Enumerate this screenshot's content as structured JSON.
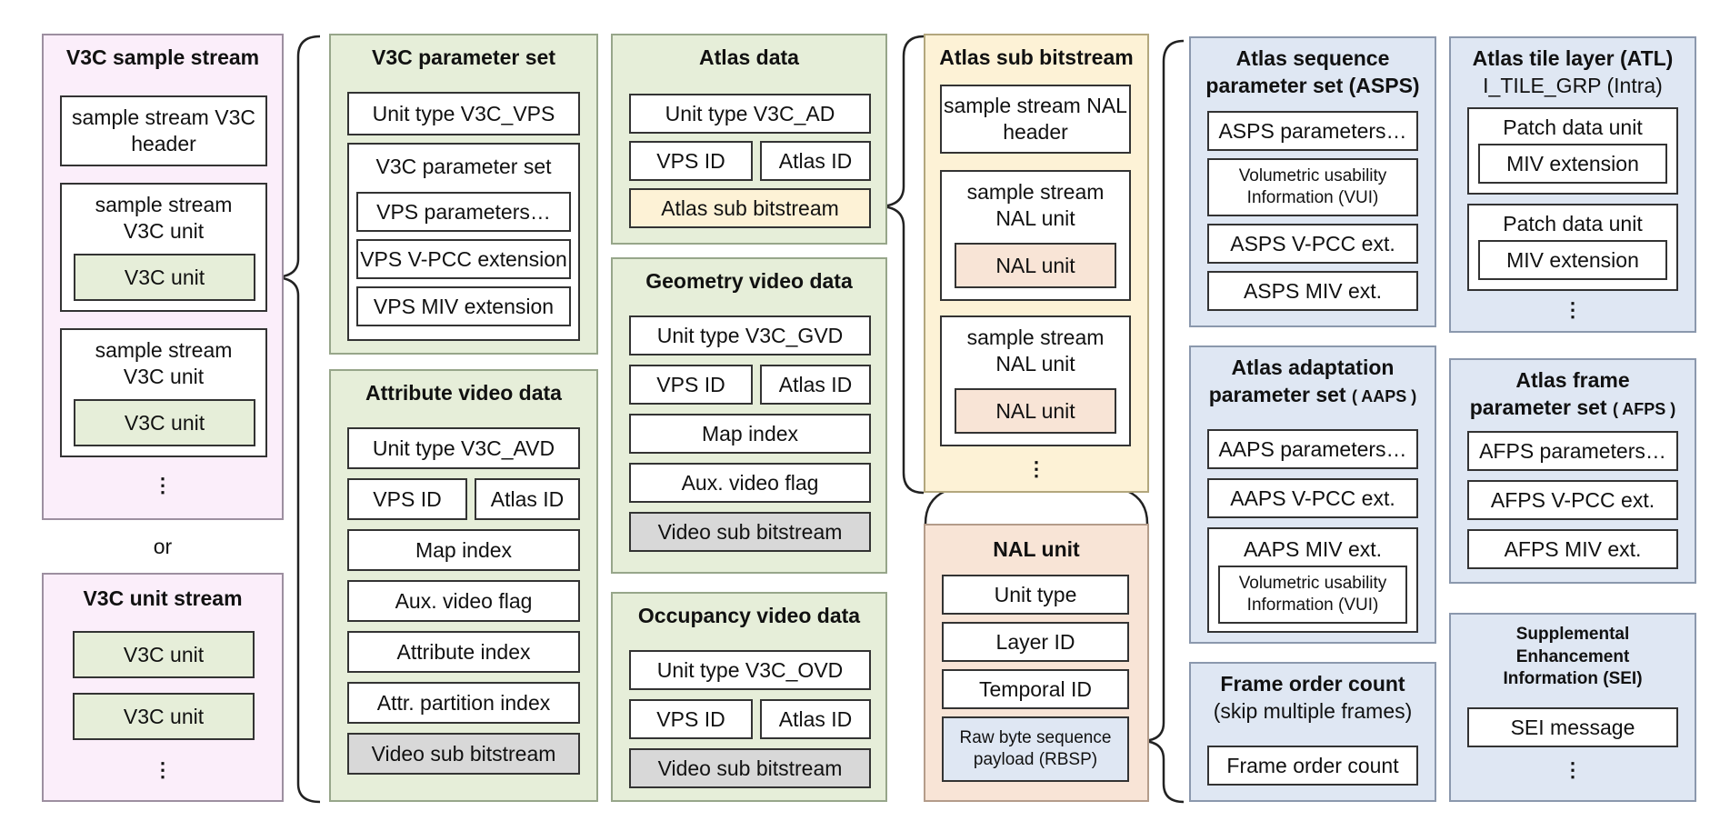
{
  "v3c_sample_stream": {
    "title": "V3C sample stream",
    "header": "sample stream V3C header",
    "unit_wrapper": "sample stream V3C unit",
    "v3c_unit": "V3C unit",
    "ellipsis": "⋮"
  },
  "or_label": "or",
  "v3c_unit_stream": {
    "title": "V3C unit stream",
    "unit": "V3C unit",
    "ellipsis": "⋮"
  },
  "v3c_parameter_set": {
    "title": "V3C parameter set",
    "unit_type": "Unit type V3C_VPS",
    "inner_title": "V3C parameter set",
    "vps_params": "VPS parameters…",
    "vps_vpcc": "VPS V-PCC extension",
    "vps_miv": "VPS MIV extension"
  },
  "attribute_video_data": {
    "title": "Attribute video data",
    "unit_type": "Unit type V3C_AVD",
    "vps_id": "VPS ID",
    "atlas_id": "Atlas ID",
    "map_index": "Map index",
    "aux_flag": "Aux. video flag",
    "attr_index": "Attribute index",
    "attr_partition": "Attr. partition index",
    "video_sub": "Video sub bitstream"
  },
  "atlas_data": {
    "title": "Atlas data",
    "unit_type": "Unit type V3C_AD",
    "vps_id": "VPS ID",
    "atlas_id": "Atlas ID",
    "atlas_sub": "Atlas sub bitstream"
  },
  "geometry_video_data": {
    "title": "Geometry video data",
    "unit_type": "Unit type V3C_GVD",
    "vps_id": "VPS ID",
    "atlas_id": "Atlas ID",
    "map_index": "Map index",
    "aux_flag": "Aux. video flag",
    "video_sub": "Video sub bitstream"
  },
  "occupancy_video_data": {
    "title": "Occupancy video data",
    "unit_type": "Unit type V3C_OVD",
    "vps_id": "VPS ID",
    "atlas_id": "Atlas ID",
    "video_sub": "Video sub bitstream"
  },
  "atlas_sub_bitstream": {
    "title": "Atlas sub bitstream",
    "nal_header": "sample stream NAL header",
    "nal_wrapper": "sample stream NAL unit",
    "nal_unit": "NAL unit",
    "ellipsis": "⋮"
  },
  "nal_unit_panel": {
    "title": "NAL unit",
    "unit_type": "Unit type",
    "layer_id": "Layer ID",
    "temporal_id": "Temporal ID",
    "rbsp": "Raw byte sequence payload (RBSP)"
  },
  "asps": {
    "title_line1": "Atlas sequence",
    "title_line2": "parameter set (ASPS)",
    "params": "ASPS parameters…",
    "vui": "Volumetric usability Information (VUI)",
    "vpcc": "ASPS V-PCC ext.",
    "miv": "ASPS MIV ext."
  },
  "aaps": {
    "title_line1": "Atlas adaptation",
    "title_line2": "parameter set",
    "title_abbr": "( AAPS )",
    "params": "AAPS parameters…",
    "vpcc": "AAPS V-PCC ext.",
    "miv": "AAPS MIV ext.",
    "vui": "Volumetric usability Information (VUI)"
  },
  "foc": {
    "title": "Frame order count",
    "subtitle": "(skip multiple frames)",
    "value": "Frame order count"
  },
  "atl": {
    "title": "Atlas tile layer (ATL)",
    "subtitle": "I_TILE_GRP (Intra)",
    "patch": "Patch data unit",
    "miv": "MIV extension",
    "ellipsis": "⋮"
  },
  "afps": {
    "title_line1": "Atlas frame",
    "title_line2": "parameter set",
    "title_abbr": "( AFPS )",
    "params": "AFPS parameters…",
    "vpcc": "AFPS V-PCC ext.",
    "miv": "AFPS MIV ext."
  },
  "sei": {
    "title": "Supplemental Enhancement Information (SEI)",
    "message": "SEI message",
    "ellipsis": "⋮"
  },
  "colors": {
    "pink": "#fbeefa",
    "green": "#e6eed9",
    "yellow": "#fdf2d6",
    "peach": "#f8e4d6",
    "blue": "#dfe7f3",
    "gray": "#d8d8d8"
  }
}
